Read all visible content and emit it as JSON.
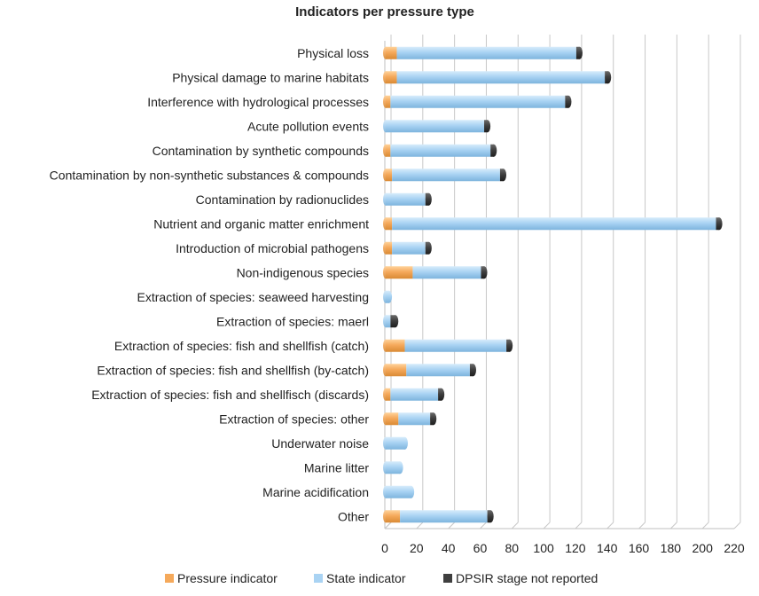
{
  "chart_data": {
    "type": "bar",
    "orientation": "horizontal",
    "stacked": true,
    "title": "Indicators per pressure type",
    "xlabel": "",
    "ylabel": "",
    "xlim": [
      0,
      220
    ],
    "xticks": [
      0,
      20,
      40,
      60,
      80,
      100,
      120,
      140,
      160,
      180,
      200,
      220
    ],
    "grid": true,
    "legend_position": "bottom",
    "categories": [
      "Physical loss",
      "Physical damage to marine habitats",
      "Interference with hydrological processes",
      "Acute pollution events",
      "Contamination by synthetic compounds",
      "Contamination by non-synthetic substances & compounds",
      "Contamination by radionuclides",
      "Nutrient and organic matter enrichment",
      "Introduction of microbial pathogens",
      "Non-indigenous species",
      "Extraction of species: seaweed harvesting",
      "Extraction of species: maerl",
      "Extraction of species: fish and shellfish (catch)",
      "Extraction of species: fish and shellfish (by-catch)",
      "Extraction of species: fish and shellfisch (discards)",
      "Extraction of species: other",
      "Underwater noise",
      "Marine litter",
      "Marine acidification",
      "Other"
    ],
    "series": [
      {
        "name": "Pressure indicator",
        "color": "#F5A95B",
        "values": [
          7,
          7,
          3,
          0,
          3,
          4,
          0,
          4,
          4,
          17,
          0,
          0,
          12,
          13,
          3,
          8,
          0,
          0,
          0,
          9
        ]
      },
      {
        "name": "State indicator",
        "color": "#A9D3F3",
        "values": [
          113,
          131,
          110,
          62,
          63,
          68,
          25,
          204,
          21,
          43,
          2,
          3,
          64,
          40,
          30,
          20,
          12,
          9,
          16,
          55
        ]
      },
      {
        "name": "DPSIR stage not reported",
        "color": "#3F3F3F",
        "values": [
          2,
          2,
          2,
          2,
          2,
          2,
          2,
          2,
          2,
          2,
          0,
          3,
          2,
          2,
          2,
          2,
          0,
          0,
          0,
          2
        ]
      }
    ]
  }
}
